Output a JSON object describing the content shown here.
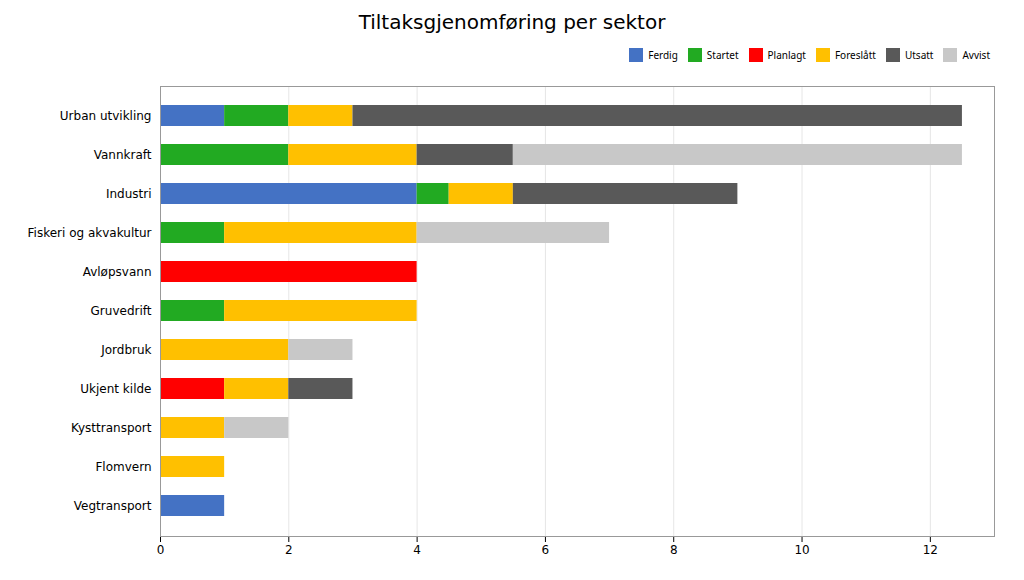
{
  "chart_data": {
    "type": "bar",
    "orientation": "horizontal",
    "stacked": true,
    "title": "Tiltaksgjenomføring per sektor",
    "categories": [
      "Urban utvikling",
      "Vannkraft",
      "Industri",
      "Fiskeri og akvakultur",
      "Avløpsvann",
      "Gruvedrift",
      "Jordbruk",
      "Ukjent kilde",
      "Kysttransport",
      "Flomvern",
      "Vegtransport"
    ],
    "series": [
      {
        "name": "Ferdig",
        "color": "#4472C4",
        "values": [
          1,
          0,
          4,
          0,
          0,
          0,
          0,
          0,
          0,
          0,
          1
        ]
      },
      {
        "name": "Startet",
        "color": "#22AA22",
        "values": [
          1,
          2,
          0.5,
          1,
          0,
          1,
          0,
          0,
          0,
          0,
          0
        ]
      },
      {
        "name": "Planlagt",
        "color": "#FF0000",
        "values": [
          0,
          0,
          0,
          0,
          4,
          0,
          0,
          1,
          0,
          0,
          0
        ]
      },
      {
        "name": "Foreslått",
        "color": "#FFC000",
        "values": [
          1,
          2,
          1,
          3,
          0,
          3,
          2,
          1,
          1,
          1,
          0
        ]
      },
      {
        "name": "Utsatt",
        "color": "#595959",
        "values": [
          9.5,
          1.5,
          3.5,
          0,
          0,
          0,
          0,
          1,
          0,
          0,
          0
        ]
      },
      {
        "name": "Avvist",
        "color": "#C8C8C8",
        "values": [
          0,
          7,
          0,
          3,
          0,
          0,
          1,
          0,
          1,
          0,
          0
        ]
      }
    ],
    "xlim": [
      0,
      13
    ],
    "xticks": [
      0,
      2,
      4,
      6,
      8,
      10,
      12
    ],
    "grid": true,
    "legend": "upper right"
  }
}
